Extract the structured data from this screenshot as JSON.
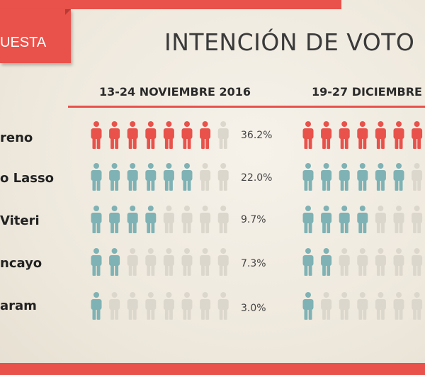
{
  "header": {
    "tag_label": "UESTA",
    "title": "INTENCIÓN DE VOTO"
  },
  "colors": {
    "accent": "#e8524b",
    "teal": "#7fb2b4",
    "empty": "#dcd7cd"
  },
  "chart_data": {
    "type": "pictogram",
    "periods": [
      "13-24 NOVIEMBRE 2016",
      "19-27 DICIEMBRE"
    ],
    "icons_per_row": 8,
    "candidates": [
      {
        "label": "reno",
        "percent_label": "36.2%",
        "value": 36.2,
        "filled": [
          7,
          7
        ],
        "color": "accent"
      },
      {
        "label": "o Lasso",
        "percent_label": "22.0%",
        "value": 22.0,
        "filled": [
          6,
          6
        ],
        "color": "teal"
      },
      {
        "label": "Viteri",
        "percent_label": "9.7%",
        "value": 9.7,
        "filled": [
          4,
          4
        ],
        "color": "teal"
      },
      {
        "label": "ncayo",
        "percent_label": "7.3%",
        "value": 7.3,
        "filled": [
          2,
          2
        ],
        "color": "teal"
      },
      {
        "label": "aram",
        "percent_label": "3.0%",
        "value": 3.0,
        "filled": [
          1,
          1
        ],
        "color": "teal"
      }
    ]
  }
}
